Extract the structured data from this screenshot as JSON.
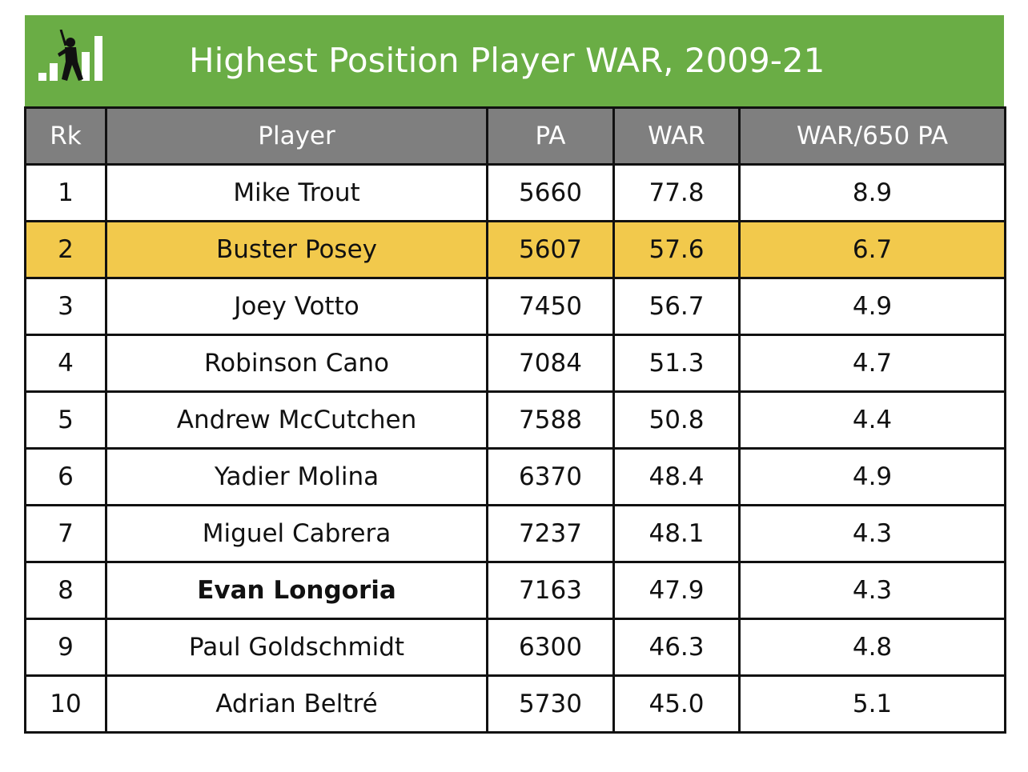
{
  "colors": {
    "header_bg": "#6aad45",
    "column_header_bg": "#7f7f7f",
    "highlight_row": "#f2c94c",
    "border": "#111111"
  },
  "header": {
    "logo_icon": "batter-bar-chart-icon",
    "title": "Highest Position Player WAR, 2009-21"
  },
  "chart_data": {
    "type": "table",
    "title": "Highest Position Player WAR, 2009-21",
    "columns": [
      "Rk",
      "Player",
      "PA",
      "WAR",
      "WAR/650 PA"
    ],
    "rows": [
      {
        "rk": "1",
        "player": "Mike Trout",
        "pa": "5660",
        "war": "77.8",
        "war650": "8.9",
        "highlight": false,
        "bold": false
      },
      {
        "rk": "2",
        "player": "Buster Posey",
        "pa": "5607",
        "war": "57.6",
        "war650": "6.7",
        "highlight": true,
        "bold": false
      },
      {
        "rk": "3",
        "player": "Joey Votto",
        "pa": "7450",
        "war": "56.7",
        "war650": "4.9",
        "highlight": false,
        "bold": false
      },
      {
        "rk": "4",
        "player": "Robinson Cano",
        "pa": "7084",
        "war": "51.3",
        "war650": "4.7",
        "highlight": false,
        "bold": false
      },
      {
        "rk": "5",
        "player": "Andrew McCutchen",
        "pa": "7588",
        "war": "50.8",
        "war650": "4.4",
        "highlight": false,
        "bold": false
      },
      {
        "rk": "6",
        "player": "Yadier Molina",
        "pa": "6370",
        "war": "48.4",
        "war650": "4.9",
        "highlight": false,
        "bold": false
      },
      {
        "rk": "7",
        "player": "Miguel Cabrera",
        "pa": "7237",
        "war": "48.1",
        "war650": "4.3",
        "highlight": false,
        "bold": false
      },
      {
        "rk": "8",
        "player": "Evan Longoria",
        "pa": "7163",
        "war": "47.9",
        "war650": "4.3",
        "highlight": false,
        "bold": true
      },
      {
        "rk": "9",
        "player": "Paul Goldschmidt",
        "pa": "6300",
        "war": "46.3",
        "war650": "4.8",
        "highlight": false,
        "bold": false
      },
      {
        "rk": "10",
        "player": "Adrian Beltré",
        "pa": "5730",
        "war": "45.0",
        "war650": "5.1",
        "highlight": false,
        "bold": false
      }
    ]
  }
}
